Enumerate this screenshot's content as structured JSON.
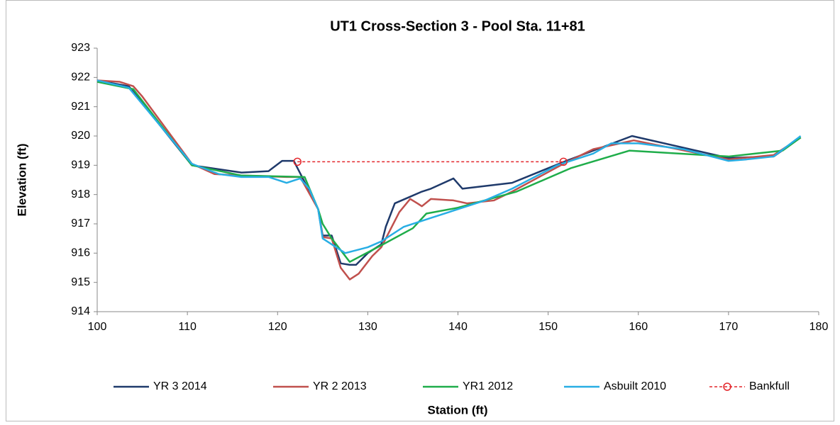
{
  "chart_data": {
    "type": "line",
    "title": "UT1 Cross-Section 3 - Pool Sta. 11+81",
    "xlabel": "Station (ft)",
    "ylabel": "Elevation (ft)",
    "xlim": [
      100,
      180
    ],
    "xticks": [
      100,
      110,
      120,
      130,
      140,
      150,
      160,
      170,
      180
    ],
    "ylim": [
      914,
      923
    ],
    "yticks": [
      914,
      915,
      916,
      917,
      918,
      919,
      920,
      921,
      922,
      923
    ],
    "grid": false,
    "legend": "bottom",
    "series": [
      {
        "name": "YR 3 2014",
        "color": "#1f3a6b",
        "x": [
          100,
          103.5,
          110.5,
          116,
          119,
          120.5,
          121.8,
          122.8,
          124.5,
          125,
          126,
          127,
          128,
          128.7,
          130,
          131.5,
          132,
          133,
          134.5,
          136,
          137,
          139.5,
          140.5,
          146,
          152,
          159.3,
          170,
          175,
          178
        ],
        "values": [
          921.9,
          921.7,
          919,
          918.75,
          918.8,
          919.15,
          919.15,
          918.55,
          917.5,
          916.6,
          916.6,
          915.65,
          915.6,
          915.6,
          916,
          916.3,
          916.9,
          917.7,
          917.9,
          918.1,
          918.2,
          918.55,
          918.2,
          918.4,
          919.15,
          920,
          919.25,
          919.3,
          919.95
        ]
      },
      {
        "name": "YR 2 2013",
        "color": "#c0504d",
        "x": [
          100,
          102.5,
          104,
          105,
          110.5,
          113,
          116,
          121,
          122.5,
          124.5,
          125,
          126,
          127,
          128,
          129,
          130.5,
          131.5,
          133.5,
          134.7,
          135.5,
          136,
          137,
          139.5,
          141,
          144,
          146,
          152,
          155,
          159.5,
          170,
          175,
          178
        ],
        "values": [
          921.9,
          921.85,
          921.7,
          921.35,
          919.05,
          918.7,
          918.65,
          918.6,
          918.6,
          917.5,
          916.55,
          916.5,
          915.5,
          915.1,
          915.3,
          915.9,
          916.2,
          917.4,
          917.85,
          917.7,
          917.6,
          917.85,
          917.8,
          917.7,
          917.8,
          918.1,
          919.1,
          919.55,
          919.85,
          919.2,
          919.35,
          919.95
        ]
      },
      {
        "name": "YR1 2012",
        "color": "#1fad4a",
        "x": [
          100,
          104,
          110.5,
          116,
          123,
          124.5,
          125,
          126,
          128,
          132,
          135,
          136.5,
          140,
          146.5,
          152.5,
          159,
          170,
          173,
          176,
          178
        ],
        "values": [
          921.85,
          921.6,
          919,
          918.65,
          918.6,
          917.5,
          917,
          916.5,
          915.7,
          916.35,
          916.85,
          917.35,
          917.55,
          918.1,
          918.9,
          919.5,
          919.3,
          919.4,
          919.5,
          919.95
        ]
      },
      {
        "name": "Asbuilt 2010",
        "color": "#28aee4",
        "x": [
          100,
          103.5,
          110.5,
          113.5,
          116,
          119,
          121,
          122.5,
          123.5,
          124.5,
          125,
          126,
          127.5,
          130,
          131.5,
          134,
          137,
          140,
          143,
          146,
          151,
          155,
          157,
          160,
          165,
          170,
          172,
          175,
          178
        ],
        "values": [
          921.9,
          921.65,
          919.05,
          918.7,
          918.6,
          918.6,
          918.4,
          918.55,
          918.2,
          917.5,
          916.5,
          916.3,
          916,
          916.2,
          916.4,
          916.9,
          917.2,
          917.5,
          917.8,
          918.2,
          919,
          919.4,
          919.75,
          919.75,
          919.55,
          919.15,
          919.2,
          919.3,
          920
        ]
      },
      {
        "name": "Bankfull",
        "color": "#e3262b",
        "dash": true,
        "marker": "circle",
        "x": [
          122.2,
          151.7
        ],
        "values": [
          919.12,
          919.12
        ]
      }
    ]
  }
}
